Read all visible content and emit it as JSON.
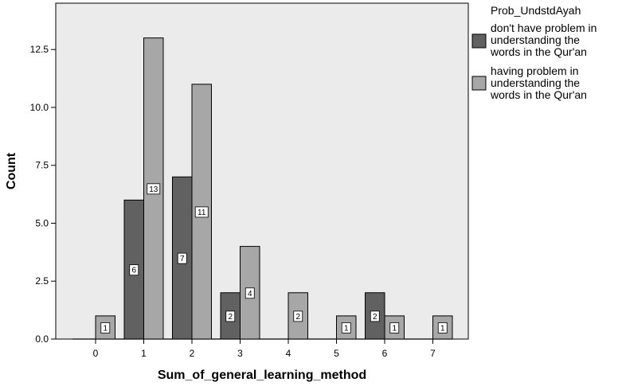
{
  "chart_data": {
    "type": "bar",
    "xlabel": "Sum_of_general_learning_method",
    "ylabel": "Count",
    "categories": [
      "0",
      "1",
      "2",
      "3",
      "4",
      "5",
      "6",
      "7"
    ],
    "ylim": [
      0,
      14.5
    ],
    "yticks": [
      "0.0",
      "2.5",
      "5.0",
      "7.5",
      "10.0",
      "12.5"
    ],
    "ytick_values": [
      0,
      2.5,
      5,
      7.5,
      10,
      12.5
    ],
    "grid": false,
    "legend": {
      "title": "Prob_UndstdAyah",
      "placement": "right",
      "entries": [
        [
          "don't have problem in",
          "understanding the",
          "words in the Qur'an"
        ],
        [
          "having problem in",
          "understanding the",
          "words in the Qur'an"
        ]
      ]
    },
    "series": [
      {
        "values": [
          0,
          6,
          7,
          2,
          0,
          0,
          2,
          0
        ],
        "color": "#616161"
      },
      {
        "values": [
          1,
          13,
          11,
          4,
          2,
          1,
          1,
          1
        ],
        "color": "#a7a7a7"
      }
    ],
    "plot_background": "#ebebeb"
  }
}
